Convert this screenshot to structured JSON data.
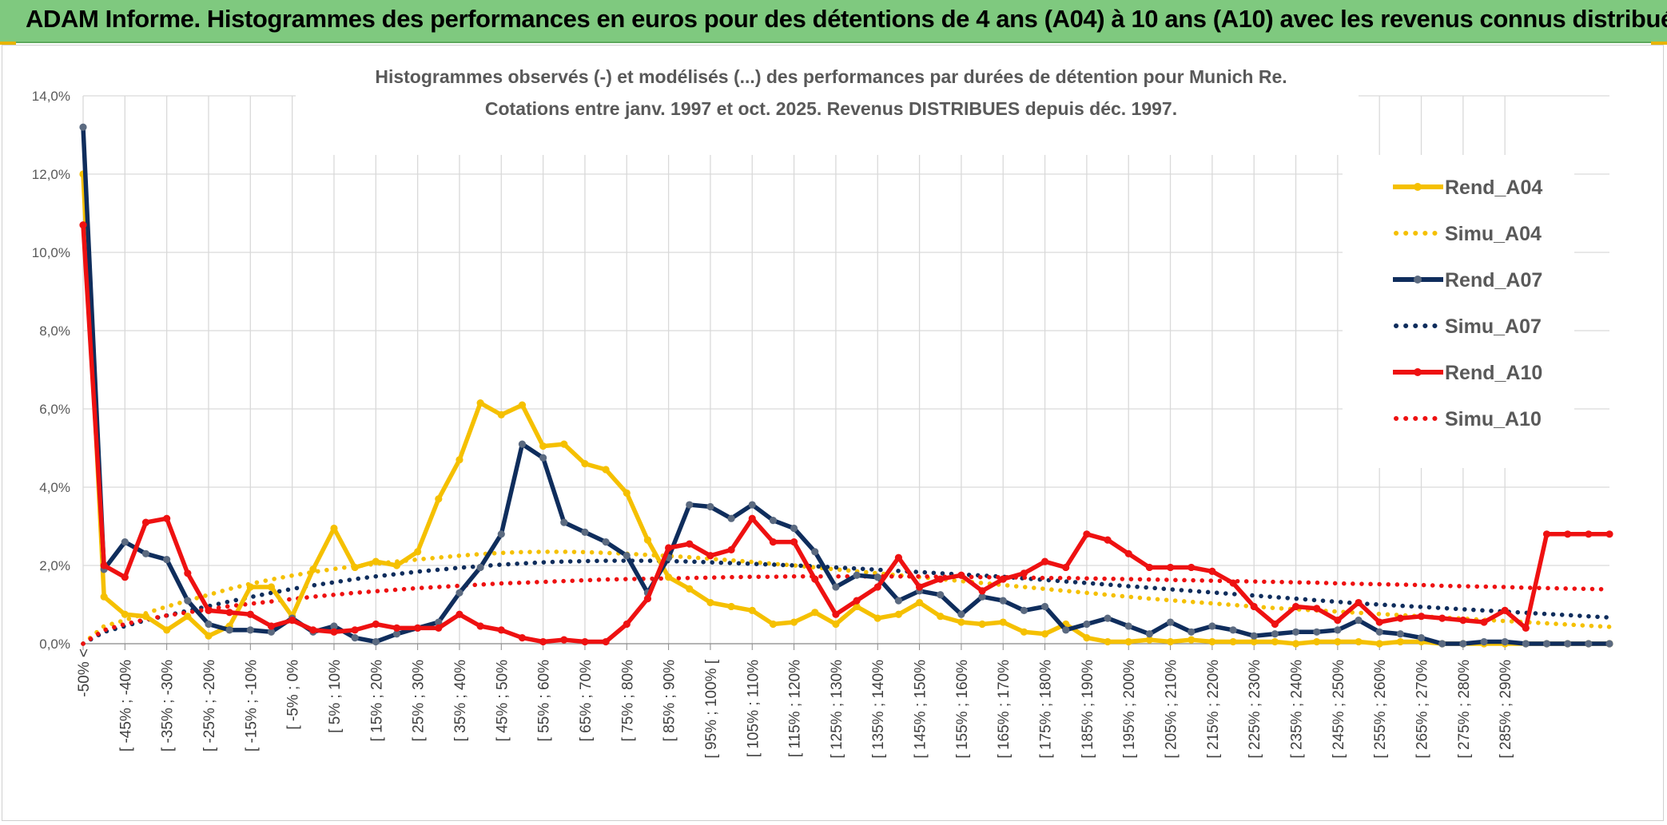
{
  "banner": {
    "title": "ADAM Informe. Histogrammes des performances en euros pour des détentions de 4 ans (A04) à 10 ans (A10) avec les revenus connus distribués"
  },
  "chart_data": {
    "type": "line",
    "title_line1": "Histogrammes observés (-) et modélisés (...) des performances par durées de détention pour Munich Re.",
    "title_line2": "Cotations entre janv. 1997 et oct. 2025. Revenus DISTRIBUES depuis déc. 1997.",
    "ylim": [
      0,
      14
    ],
    "y_ticks": [
      "0,0%",
      "2,0%",
      "4,0%",
      "6,0%",
      "8,0%",
      "10,0%",
      "12,0%",
      "14,0%"
    ],
    "grid": "on",
    "legend_position": "right",
    "category_labels": [
      "-50% <",
      "[ -45% ; -40%",
      "[ -35% ; -30%",
      "[ -25% ; -20%",
      "[ -15% ; -10%",
      "[ -5% ; 0%",
      "[ 5% ; 10%",
      "[ 15% ; 20%",
      "[ 25% ; 30%",
      "[ 35% ; 40%",
      "[ 45% ; 50%",
      "[ 55% ; 60%",
      "[ 65% ; 70%",
      "[ 75% ; 80%",
      "[ 85% ; 90%",
      "[ 95% ; 100% [",
      "[ 105% ; 110%",
      "[ 115% ; 120%",
      "[ 125% ; 130%",
      "[ 135% ; 140%",
      "[ 145% ; 150%",
      "[ 155% ; 160%",
      "[ 165% ; 170%",
      "[ 175% ; 180%",
      "[ 185% ; 190%",
      "[ 195% ; 200%",
      "[ 205% ; 210%",
      "[ 215% ; 220%",
      "[ 225% ; 230%",
      "[ 235% ; 240%",
      "[ 245% ; 250%",
      "[ 255% ; 260%",
      "[ 265% ; 270%",
      "[ 275% ; 280%",
      "[ 285% ; 290%"
    ],
    "series": [
      {
        "name": "Rend_A04",
        "style": "solid",
        "color": "#f5c000",
        "values": [
          12.0,
          1.2,
          0.75,
          0.7,
          0.35,
          0.7,
          0.2,
          0.45,
          1.45,
          1.45,
          0.7,
          1.9,
          2.95,
          1.95,
          2.1,
          2.0,
          2.35,
          3.7,
          4.7,
          6.15,
          5.85,
          6.1,
          5.05,
          5.1,
          4.6,
          4.45,
          3.85,
          2.65,
          1.7,
          1.4,
          1.05,
          0.95,
          0.85,
          0.5,
          0.55,
          0.8,
          0.5,
          0.95,
          0.65,
          0.75,
          1.05,
          0.7,
          0.55,
          0.5,
          0.55,
          0.3,
          0.25,
          0.5,
          0.15,
          0.05,
          0.05,
          0.1,
          0.05,
          0.1,
          0.05,
          0.05,
          0.05,
          0.05,
          0.0,
          0.05,
          0.05,
          0.05,
          0.0,
          0.05,
          0.05,
          0.0,
          0.0,
          0.0,
          0.0,
          0.0,
          0.0,
          0.0,
          0.0,
          0.0
        ]
      },
      {
        "name": "Simu_A04",
        "style": "dotted",
        "color": "#f5c000",
        "values": [
          0.0,
          0.45,
          0.6,
          0.78,
          0.95,
          1.1,
          1.25,
          1.4,
          1.53,
          1.64,
          1.74,
          1.83,
          1.91,
          1.98,
          2.04,
          2.1,
          2.15,
          2.2,
          2.25,
          2.29,
          2.32,
          2.34,
          2.35,
          2.35,
          2.34,
          2.32,
          2.3,
          2.27,
          2.24,
          2.21,
          2.17,
          2.13,
          2.09,
          2.04,
          2.0,
          1.95,
          1.9,
          1.85,
          1.8,
          1.75,
          1.7,
          1.65,
          1.6,
          1.55,
          1.5,
          1.45,
          1.4,
          1.35,
          1.3,
          1.25,
          1.2,
          1.15,
          1.11,
          1.07,
          1.03,
          0.99,
          0.95,
          0.91,
          0.88,
          0.85,
          0.82,
          0.79,
          0.76,
          0.73,
          0.7,
          0.67,
          0.64,
          0.61,
          0.58,
          0.55,
          0.52,
          0.49,
          0.46,
          0.43
        ]
      },
      {
        "name": "Rend_A07",
        "style": "solid",
        "color": "#0f2d5c",
        "values": [
          13.2,
          1.9,
          2.6,
          2.3,
          2.15,
          1.1,
          0.5,
          0.35,
          0.35,
          0.3,
          0.65,
          0.3,
          0.45,
          0.15,
          0.05,
          0.25,
          0.4,
          0.55,
          1.3,
          1.95,
          2.8,
          5.1,
          4.75,
          3.1,
          2.85,
          2.6,
          2.25,
          1.3,
          2.2,
          3.55,
          3.5,
          3.2,
          3.55,
          3.15,
          2.95,
          2.35,
          1.45,
          1.75,
          1.7,
          1.1,
          1.35,
          1.25,
          0.75,
          1.2,
          1.1,
          0.85,
          0.95,
          0.35,
          0.5,
          0.65,
          0.45,
          0.25,
          0.55,
          0.3,
          0.45,
          0.35,
          0.2,
          0.25,
          0.3,
          0.3,
          0.35,
          0.6,
          0.3,
          0.25,
          0.15,
          0.0,
          0.0,
          0.05,
          0.05,
          0.0,
          0.0,
          0.0,
          0.0,
          0.0
        ]
      },
      {
        "name": "Simu_A07",
        "style": "dotted",
        "color": "#0f2d5c",
        "values": [
          0.0,
          0.3,
          0.45,
          0.6,
          0.72,
          0.84,
          0.96,
          1.08,
          1.19,
          1.3,
          1.4,
          1.49,
          1.57,
          1.65,
          1.72,
          1.78,
          1.84,
          1.89,
          1.94,
          1.98,
          2.02,
          2.05,
          2.08,
          2.1,
          2.11,
          2.12,
          2.12,
          2.12,
          2.11,
          2.1,
          2.08,
          2.06,
          2.04,
          2.02,
          2.0,
          1.98,
          1.95,
          1.92,
          1.89,
          1.86,
          1.83,
          1.8,
          1.77,
          1.74,
          1.71,
          1.67,
          1.63,
          1.59,
          1.55,
          1.51,
          1.47,
          1.43,
          1.39,
          1.35,
          1.31,
          1.27,
          1.23,
          1.19,
          1.15,
          1.11,
          1.07,
          1.03,
          1.0,
          0.97,
          0.94,
          0.91,
          0.88,
          0.85,
          0.82,
          0.79,
          0.76,
          0.73,
          0.7,
          0.67
        ]
      },
      {
        "name": "Rend_A10",
        "style": "solid",
        "color": "#ee1111",
        "values": [
          10.7,
          2.0,
          1.7,
          3.1,
          3.2,
          1.8,
          0.85,
          0.8,
          0.75,
          0.45,
          0.6,
          0.35,
          0.3,
          0.35,
          0.5,
          0.4,
          0.4,
          0.4,
          0.75,
          0.45,
          0.35,
          0.15,
          0.05,
          0.1,
          0.05,
          0.05,
          0.5,
          1.15,
          2.45,
          2.55,
          2.25,
          2.4,
          3.2,
          2.6,
          2.6,
          1.65,
          0.75,
          1.1,
          1.45,
          2.2,
          1.45,
          1.65,
          1.75,
          1.35,
          1.65,
          1.8,
          2.1,
          1.95,
          2.8,
          2.65,
          2.3,
          1.95,
          1.95,
          1.95,
          1.85,
          1.55,
          0.95,
          0.5,
          0.95,
          0.9,
          0.6,
          1.05,
          0.55,
          0.65,
          0.7,
          0.65,
          0.6,
          0.55,
          0.85,
          0.4,
          2.8,
          2.8,
          2.8,
          2.8
        ]
      },
      {
        "name": "Simu_A10",
        "style": "dotted",
        "color": "#ee1111",
        "values": [
          0.0,
          0.35,
          0.5,
          0.62,
          0.72,
          0.8,
          0.88,
          0.96,
          1.02,
          1.08,
          1.14,
          1.2,
          1.25,
          1.3,
          1.34,
          1.38,
          1.42,
          1.45,
          1.48,
          1.51,
          1.54,
          1.56,
          1.58,
          1.6,
          1.62,
          1.64,
          1.65,
          1.66,
          1.67,
          1.68,
          1.69,
          1.7,
          1.71,
          1.71,
          1.72,
          1.72,
          1.72,
          1.72,
          1.72,
          1.72,
          1.72,
          1.71,
          1.71,
          1.7,
          1.7,
          1.69,
          1.68,
          1.68,
          1.67,
          1.66,
          1.65,
          1.64,
          1.63,
          1.62,
          1.61,
          1.6,
          1.59,
          1.58,
          1.57,
          1.56,
          1.54,
          1.53,
          1.52,
          1.51,
          1.5,
          1.48,
          1.47,
          1.46,
          1.45,
          1.43,
          1.42,
          1.41,
          1.4,
          1.39
        ]
      }
    ]
  }
}
